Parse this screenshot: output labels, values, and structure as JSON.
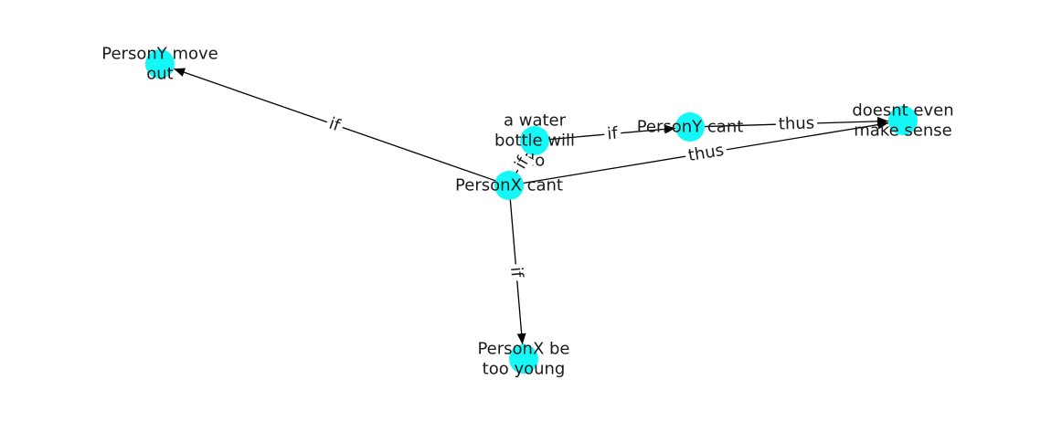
{
  "graph": {
    "nodes": [
      {
        "id": "personx_cant",
        "label": [
          "PersonX cant"
        ]
      },
      {
        "id": "persony_move_out",
        "label": [
          "PersonY move",
          "out"
        ]
      },
      {
        "id": "water_bottle",
        "label": [
          "a water",
          "bottle will",
          "do"
        ]
      },
      {
        "id": "persony_cant",
        "label": [
          "PersonY cant"
        ]
      },
      {
        "id": "doesnt_make_sense",
        "label": [
          "doesnt even",
          "make sense"
        ]
      },
      {
        "id": "personx_too_young",
        "label": [
          "PersonX be",
          "too young"
        ]
      }
    ],
    "edges": [
      {
        "from": "personx_cant",
        "to": "persony_move_out",
        "label": "if"
      },
      {
        "from": "personx_cant",
        "to": "water_bottle",
        "label": "if"
      },
      {
        "from": "personx_cant",
        "to": "doesnt_make_sense",
        "label": "thus"
      },
      {
        "from": "personx_cant",
        "to": "personx_too_young",
        "label": "if"
      },
      {
        "from": "water_bottle",
        "to": "persony_cant",
        "label": "if"
      },
      {
        "from": "persony_cant",
        "to": "doesnt_make_sense",
        "label": "thus"
      }
    ],
    "colors": {
      "node": "#15f8f8",
      "edge": "#000000",
      "text": "#1a1a1a"
    }
  }
}
